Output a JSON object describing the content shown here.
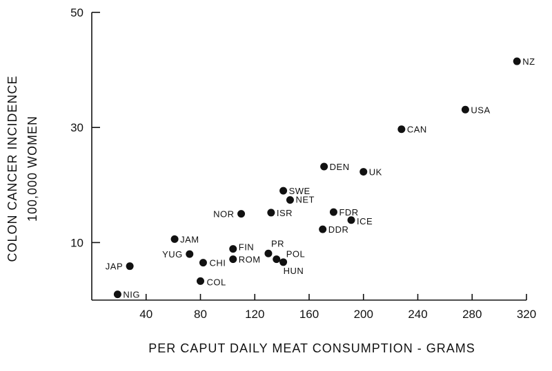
{
  "chart_data": {
    "type": "scatter",
    "title": "",
    "xlabel": "PER CAPUT DAILY MEAT CONSUMPTION - GRAMS",
    "ylabel_line1": "COLON CANCER INCIDENCE",
    "ylabel_line2": "100,000 WOMEN",
    "xlim": [
      0,
      320
    ],
    "ylim": [
      0,
      50
    ],
    "x_ticks": [
      40,
      80,
      120,
      160,
      200,
      240,
      280,
      320
    ],
    "x_tick_labels": [
      "40",
      "80",
      "120",
      "160",
      "200",
      "240",
      "280",
      "320"
    ],
    "y_ticks": [
      10,
      30,
      50
    ],
    "y_tick_labels": [
      "10",
      "30",
      "50"
    ],
    "grid": false,
    "legend": "none",
    "points": [
      {
        "label": "NIG",
        "x": 19,
        "y": 1
      },
      {
        "label": "JAP",
        "x": 28,
        "y": 5.9
      },
      {
        "label": "COL",
        "x": 80,
        "y": 3.3
      },
      {
        "label": "CHI",
        "x": 82,
        "y": 6.5
      },
      {
        "label": "YUG",
        "x": 72,
        "y": 8
      },
      {
        "label": "JAM",
        "x": 61,
        "y": 10.6
      },
      {
        "label": "ROM",
        "x": 104,
        "y": 7.1
      },
      {
        "label": "FIN",
        "x": 104,
        "y": 8.9
      },
      {
        "label": "PR",
        "x": 130,
        "y": 8.1
      },
      {
        "label": "POL",
        "x": 136,
        "y": 7.1
      },
      {
        "label": "HUN",
        "x": 141,
        "y": 6.6
      },
      {
        "label": "NOR",
        "x": 110,
        "y": 15
      },
      {
        "label": "ISR",
        "x": 132,
        "y": 15.2
      },
      {
        "label": "NET",
        "x": 146,
        "y": 17.4
      },
      {
        "label": "SWE",
        "x": 141,
        "y": 19
      },
      {
        "label": "DDR",
        "x": 170,
        "y": 12.3
      },
      {
        "label": "FDR",
        "x": 178,
        "y": 15.3
      },
      {
        "label": "ICE",
        "x": 191,
        "y": 13.9
      },
      {
        "label": "DEN",
        "x": 171,
        "y": 23.2
      },
      {
        "label": "UK",
        "x": 200,
        "y": 22.3
      },
      {
        "label": "CAN",
        "x": 228,
        "y": 29.7
      },
      {
        "label": "USA",
        "x": 275,
        "y": 33.1
      },
      {
        "label": "NZ",
        "x": 313,
        "y": 41.5
      }
    ]
  }
}
